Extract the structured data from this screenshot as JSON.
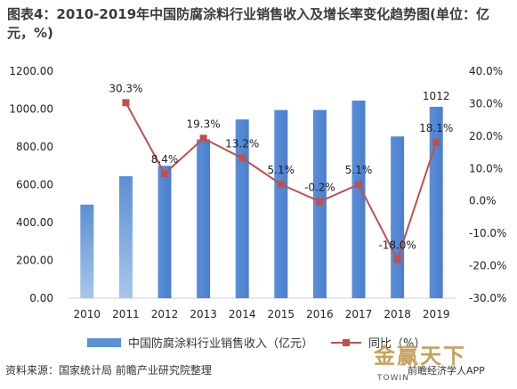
{
  "title": "图表4：2010-2019年中国防腐涂料行业销售收入及增长率变化趋势图(单位：亿元，%)",
  "source": "资料来源：国家统计局 前瞻产业研究院整理",
  "brand": {
    "logo": "金赢天下",
    "sub": "前瞻经济学人APP",
    "sub2": "TOWIN"
  },
  "colors": {
    "bar": "#5b8fd6",
    "bar_light": "#a8c6ec",
    "line": "#c0504d",
    "axis_text": "#222222"
  },
  "chart_data": {
    "type": "bar+line",
    "categories": [
      "2010",
      "2011",
      "2012",
      "2013",
      "2014",
      "2015",
      "2016",
      "2017",
      "2018",
      "2019"
    ],
    "series": [
      {
        "name": "中国防腐涂料行业销售收入（亿元）",
        "type": "bar",
        "axis": "left",
        "values": [
          495,
          645,
          700,
          840,
          945,
          995,
          995,
          1045,
          855,
          1012
        ],
        "labels": [
          "",
          "",
          "",
          "",
          "",
          "",
          "",
          "",
          "",
          "1012"
        ]
      },
      {
        "name": "同比（%）",
        "type": "line",
        "axis": "right",
        "values": [
          null,
          30.3,
          8.4,
          19.3,
          13.2,
          5.1,
          -0.2,
          5.1,
          -18.0,
          18.1
        ],
        "labels": [
          "",
          "30.3%",
          "8.4%",
          "19.3%",
          "13.2%",
          "5.1%",
          "-0.2%",
          "5.1%",
          "-18.0%",
          "18.1%"
        ]
      }
    ],
    "y_left": {
      "min": 0,
      "max": 1200,
      "step": 200,
      "tick_labels": [
        "0.00",
        "200.00",
        "400.00",
        "600.00",
        "800.00",
        "1000.00",
        "1200.00"
      ]
    },
    "y_right": {
      "min": -30,
      "max": 40,
      "step": 10,
      "tick_labels": [
        "-30.0%",
        "-20.0%",
        "-10.0%",
        "0.0%",
        "10.0%",
        "20.0%",
        "30.0%",
        "40.0%"
      ]
    },
    "grid": false,
    "legend": "bottom"
  }
}
